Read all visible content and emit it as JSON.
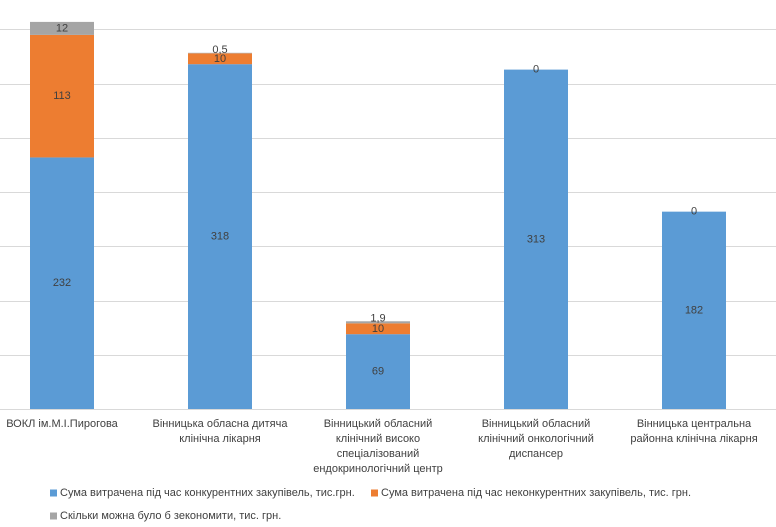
{
  "chart_data": {
    "type": "stacked-bar",
    "categories": [
      "ВОКЛ ім.М.І.Пирогова",
      "Вінницька обласна дитяча клінічна лікарня",
      "Вінницький обласний клінічний високо спеціалізований ендокринологічний центр",
      "Вінницький обласний клінічний онкологічний диспансер",
      "Вінницька центральна районна клінічна лікарня"
    ],
    "category_lines": [
      [
        "ВОКЛ ім.М.І.Пирогова"
      ],
      [
        "Вінницька обласна дитяча",
        "клінічна лікарня"
      ],
      [
        "Вінницький обласний",
        "клінічний високо",
        "спеціалізований",
        "ендокринологічний центр"
      ],
      [
        "Вінницький обласний",
        "клінічний онкологічний",
        "диспансер"
      ],
      [
        "Вінницька центральна",
        "районна клінічна лікарня"
      ]
    ],
    "series": [
      {
        "name": "Сума витрачена під час конкурентних закупівель, тис.грн.",
        "color": "#5b9bd5",
        "values": [
          232,
          318,
          69,
          313,
          182
        ],
        "labels": [
          "232",
          "318",
          "69",
          "313",
          "182"
        ]
      },
      {
        "name": "Сума витрачена під час неконкурентних закупівель, тис. грн.",
        "color": "#ed7d31",
        "values": [
          113,
          10,
          10,
          0,
          0
        ],
        "labels": [
          "113",
          "10",
          "10",
          "0",
          "0"
        ]
      },
      {
        "name": "Скільки можна було б зекономити, тис. грн.",
        "color": "#a5a5a5",
        "values": [
          12,
          0.5,
          1.9,
          0,
          0
        ],
        "labels": [
          "12",
          "0,5",
          "1,9",
          "",
          ""
        ]
      }
    ],
    "ylim": [
      0,
      357
    ],
    "gridlines": [
      50,
      100,
      150,
      200,
      250,
      300,
      350
    ],
    "grid": true,
    "legend": "bottom-left",
    "title": "",
    "xlabel": "",
    "ylabel": ""
  }
}
